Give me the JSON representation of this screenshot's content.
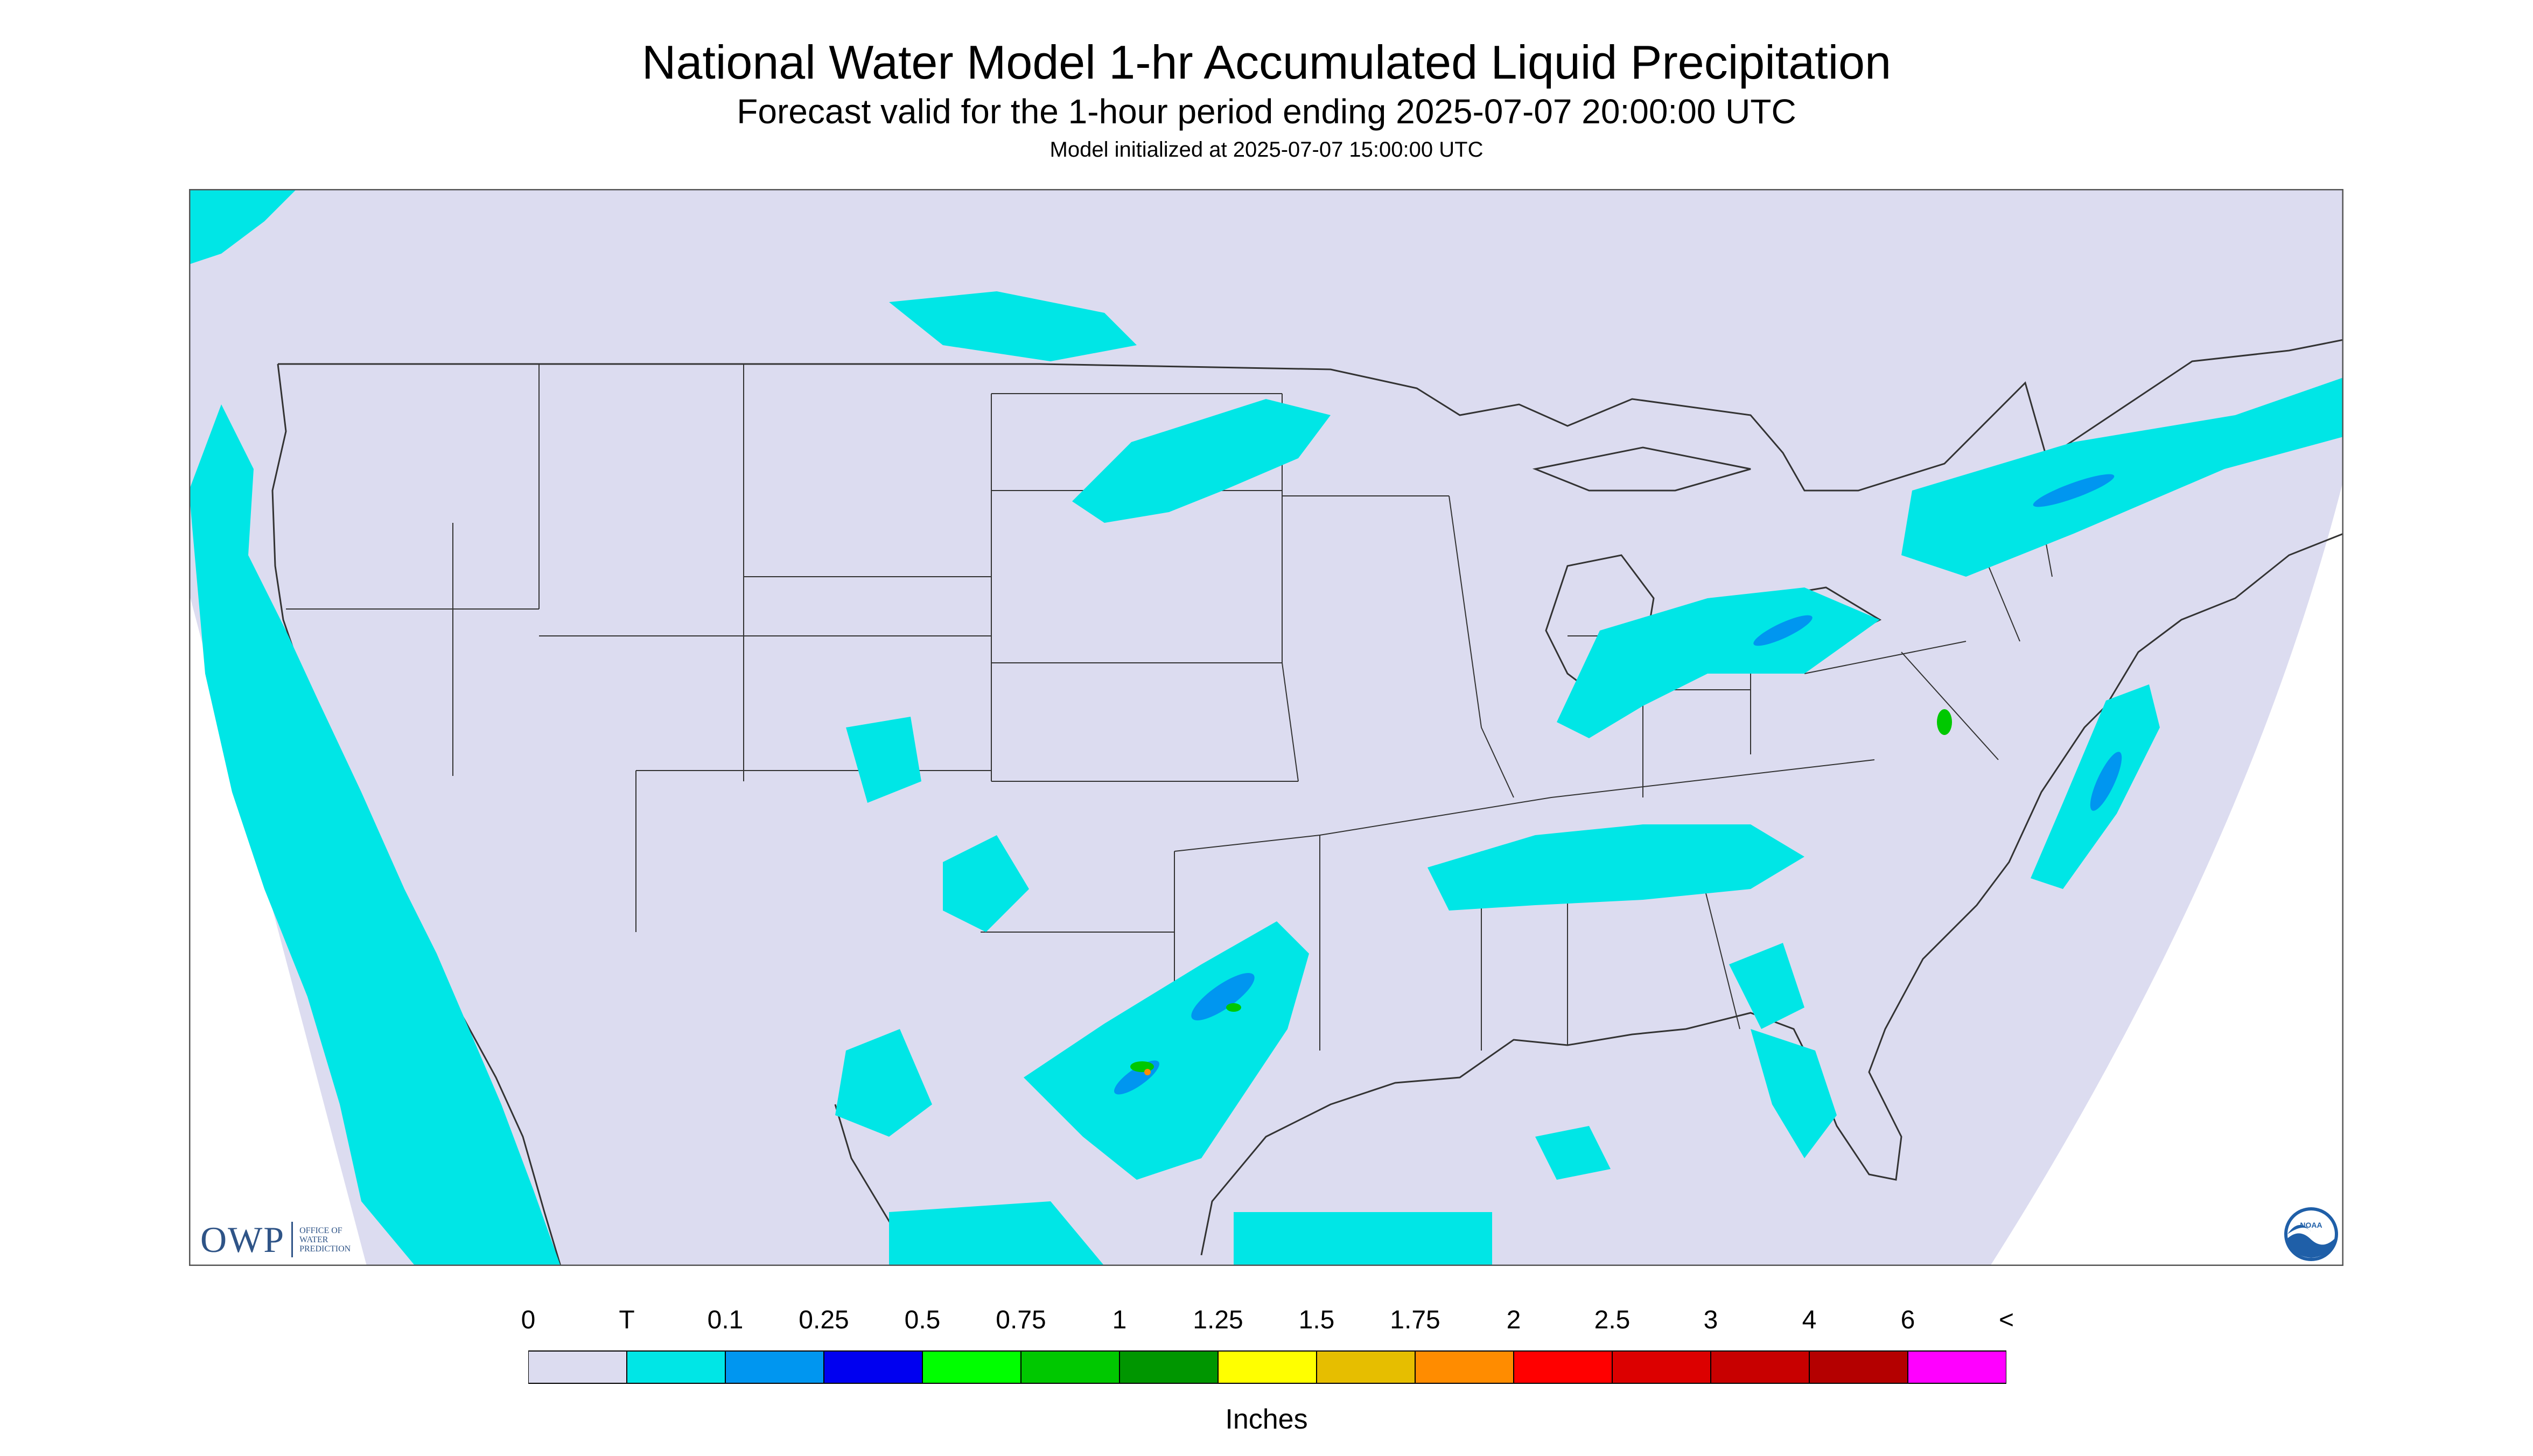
{
  "title": "National Water Model 1-hr Accumulated Liquid Precipitation",
  "subtitle": "Forecast valid for the 1-hour period ending 2025-07-07 20:00:00 UTC",
  "initialized": "Model initialized at 2025-07-07 15:00:00 UTC",
  "logos": {
    "owp_mark": "OWP",
    "owp_text": "Office of\nWater\nPrediction",
    "noaa_text": "NOAA"
  },
  "legend": {
    "labels": [
      "0",
      "T",
      "0.1",
      "0.25",
      "0.5",
      "0.75",
      "1",
      "1.25",
      "1.5",
      "1.75",
      "2",
      "2.5",
      "3",
      "4",
      "6",
      "<"
    ],
    "colors": [
      "#dcdcf0",
      "#00e6e6",
      "#0096f0",
      "#0000f0",
      "#00ff00",
      "#00c800",
      "#009600",
      "#ffff00",
      "#e6be00",
      "#ff8c00",
      "#ff0000",
      "#dc0000",
      "#c80000",
      "#b40000",
      "#ff00ff",
      "#9650c8"
    ],
    "units": "Inches"
  },
  "map": {
    "region": "CONUS",
    "background_color": "#dcdcf0",
    "outside_color": "#ffffff",
    "boundary_color": "#333333",
    "precip_color": "#00e6e6"
  }
}
